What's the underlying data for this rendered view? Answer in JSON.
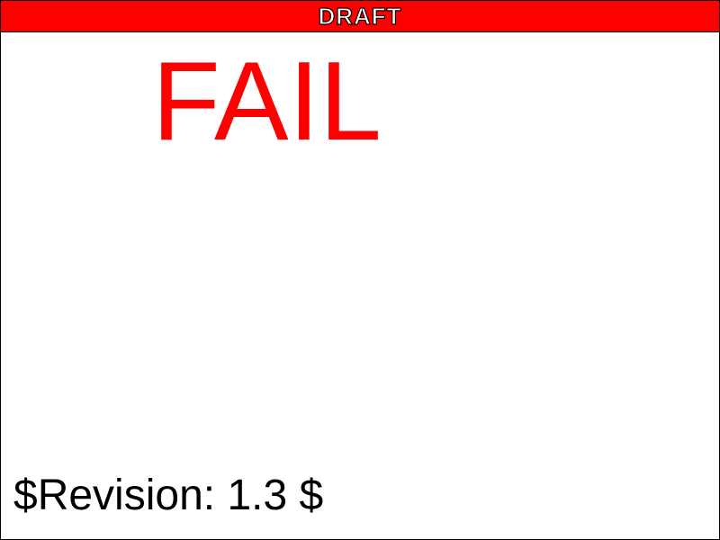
{
  "banner": {
    "label": "DRAFT",
    "background_color": "#ff0000"
  },
  "status": {
    "text": "FAIL",
    "color": "#ff0000"
  },
  "footer": {
    "revision": "$Revision: 1.3 $"
  }
}
